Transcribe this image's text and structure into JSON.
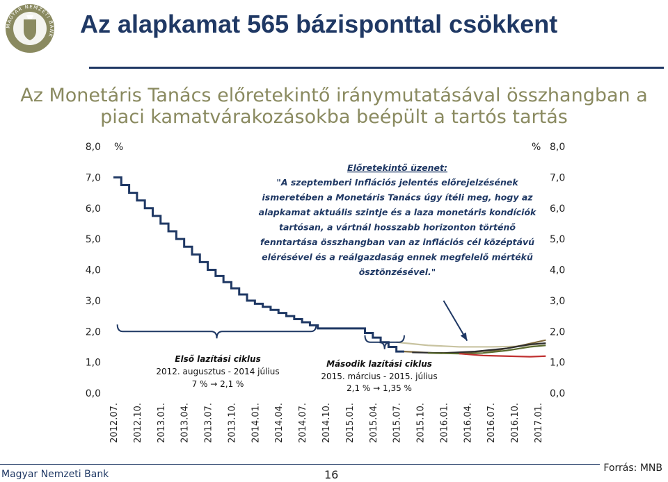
{
  "header": {
    "logo": {
      "icon": "mnb-seal-icon",
      "text": "MAGYAR NEMZETI BANK"
    },
    "title": "Az alapkamat 565 bázisponttal csökkent"
  },
  "subtitle": {
    "line1": "Az Monetáris Tanács előretekintő iránymutatásával összhangban a",
    "line2": "piaci kamatvárakozásokba beépült a tartós tartás"
  },
  "chart_data": {
    "type": "line",
    "y_unit_left": "%",
    "y_unit_right": "%",
    "ylim": [
      0,
      8
    ],
    "yticks": [
      "0,0",
      "1,0",
      "2,0",
      "3,0",
      "4,0",
      "5,0",
      "6,0",
      "7,0",
      "8,0"
    ],
    "x_labels": [
      "2012.07.",
      "2012.10.",
      "2013.01.",
      "2013.04.",
      "2013.07.",
      "2013.10.",
      "2014.01.",
      "2014.04.",
      "2014.07.",
      "2014.10.",
      "2015.01.",
      "2015.04.",
      "2015.07.",
      "2015.10.",
      "2016.01.",
      "2016.04.",
      "2016.07.",
      "2016.10.",
      "2017.01."
    ],
    "colors": {
      "base_rate": "#1f3864",
      "expect_1": "#7f6a3c",
      "expect_2": "#2f2f2f",
      "expect_3": "#5a6b2e",
      "expect_4": "#c03030",
      "expect_5": "#c8c3a0",
      "arrow": "#1f3864"
    },
    "base_rate_steps": [
      {
        "x": 0.0,
        "y": 7.0
      },
      {
        "x": 1.0,
        "y": 6.75
      },
      {
        "x": 2.0,
        "y": 6.5
      },
      {
        "x": 3.0,
        "y": 6.25
      },
      {
        "x": 4.0,
        "y": 6.0
      },
      {
        "x": 5.0,
        "y": 5.75
      },
      {
        "x": 6.0,
        "y": 5.5
      },
      {
        "x": 7.0,
        "y": 5.25
      },
      {
        "x": 8.0,
        "y": 5.0
      },
      {
        "x": 9.0,
        "y": 4.75
      },
      {
        "x": 10.0,
        "y": 4.5
      },
      {
        "x": 11.0,
        "y": 4.25
      },
      {
        "x": 12.0,
        "y": 4.0
      },
      {
        "x": 13.0,
        "y": 3.8
      },
      {
        "x": 14.0,
        "y": 3.6
      },
      {
        "x": 15.0,
        "y": 3.4
      },
      {
        "x": 16.0,
        "y": 3.2
      },
      {
        "x": 17.0,
        "y": 3.0
      },
      {
        "x": 18.0,
        "y": 2.9
      },
      {
        "x": 19.0,
        "y": 2.8
      },
      {
        "x": 20.0,
        "y": 2.7
      },
      {
        "x": 21.0,
        "y": 2.6
      },
      {
        "x": 22.0,
        "y": 2.5
      },
      {
        "x": 23.0,
        "y": 2.4
      },
      {
        "x": 24.0,
        "y": 2.3
      },
      {
        "x": 25.0,
        "y": 2.2
      },
      {
        "x": 26.0,
        "y": 2.1
      },
      {
        "x": 32.0,
        "y": 1.95
      },
      {
        "x": 33.0,
        "y": 1.8
      },
      {
        "x": 34.0,
        "y": 1.65
      },
      {
        "x": 35.0,
        "y": 1.5
      },
      {
        "x": 36.0,
        "y": 1.35
      },
      {
        "x": 37.0,
        "y": 1.35
      }
    ],
    "expectations": [
      {
        "key": "expect_5",
        "points": [
          [
            36,
            1.65
          ],
          [
            40,
            1.55
          ],
          [
            44,
            1.5
          ],
          [
            48,
            1.5
          ],
          [
            52,
            1.52
          ],
          [
            55,
            1.62
          ]
        ]
      },
      {
        "key": "expect_1",
        "points": [
          [
            37,
            1.35
          ],
          [
            41,
            1.3
          ],
          [
            45,
            1.32
          ],
          [
            49,
            1.4
          ],
          [
            52,
            1.55
          ],
          [
            55,
            1.72
          ]
        ]
      },
      {
        "key": "expect_2",
        "points": [
          [
            38,
            1.32
          ],
          [
            42,
            1.3
          ],
          [
            46,
            1.35
          ],
          [
            50,
            1.45
          ],
          [
            53,
            1.58
          ],
          [
            55,
            1.62
          ]
        ]
      },
      {
        "key": "expect_3",
        "points": [
          [
            40,
            1.3
          ],
          [
            44,
            1.28
          ],
          [
            47,
            1.3
          ],
          [
            50,
            1.38
          ],
          [
            53,
            1.5
          ],
          [
            55,
            1.55
          ]
        ]
      },
      {
        "key": "expect_4",
        "points": [
          [
            44,
            1.28
          ],
          [
            47,
            1.22
          ],
          [
            50,
            1.2
          ],
          [
            53,
            1.18
          ],
          [
            55,
            1.2
          ]
        ]
      }
    ],
    "brace_1": {
      "x_from": 0.5,
      "x_to": 25.8,
      "y": 2.0
    },
    "brace_2": {
      "x_from": 32,
      "x_to": 37,
      "y": 1.65
    },
    "arrow": {
      "from": [
        42,
        3.0
      ],
      "to": [
        45,
        1.7
      ]
    },
    "annotation_message": {
      "title": "Előretekintő üzenet:",
      "lines": [
        "\"A szeptemberi Inflációs jelentés előrejelzésének",
        "ismeretében a Monetáris Tanács úgy ítéli meg, hogy az",
        "alapkamat aktuális szintje és a laza monetáris kondíciók",
        "tartósan, a vártnál hosszabb horizonton történő",
        "fenntartása összhangban van az inflációs cél középtávú",
        "elérésével és a reálgazdaság ennek megfelelő mértékű",
        "ösztönzésével.\""
      ]
    },
    "annotation_cycle_1": {
      "title": "Első lazítási ciklus",
      "line1": "2012. augusztus - 2014 július",
      "line2": "7 % → 2,1 %"
    },
    "annotation_cycle_2": {
      "title": "Második lazítási ciklus",
      "line1": "2015. március - 2015. július",
      "line2": "2,1 % → 1,35 %"
    }
  },
  "footer": {
    "bank_name": "Magyar Nemzeti Bank",
    "page_number": "16",
    "source": "Forrás: MNB"
  }
}
